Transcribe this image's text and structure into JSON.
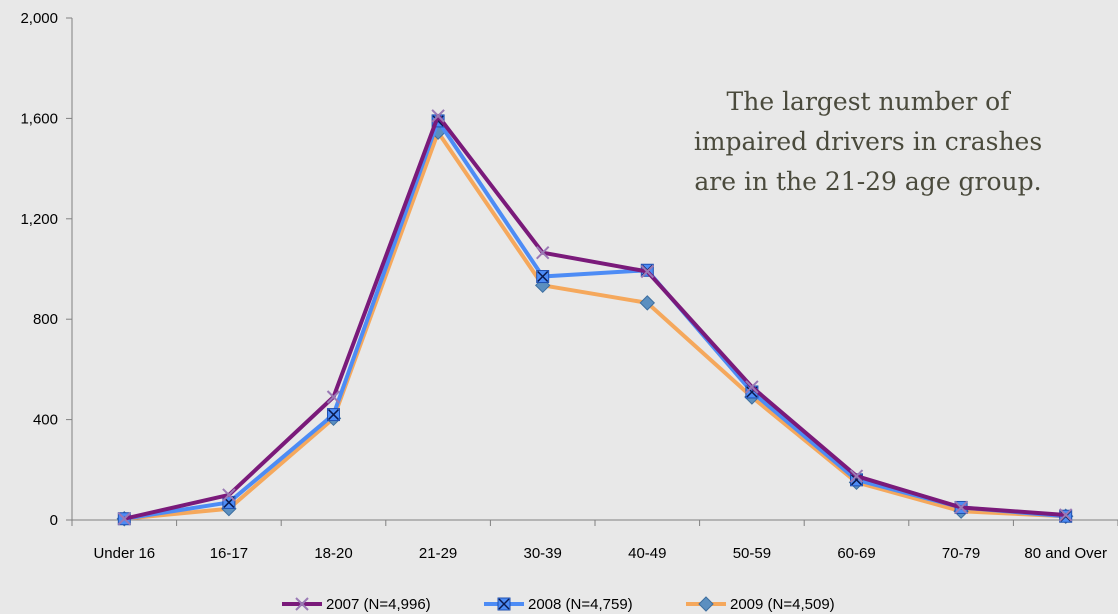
{
  "chart_data": {
    "type": "line",
    "categories": [
      "Under 16",
      "16-17",
      "18-20",
      "21-29",
      "30-39",
      "40-49",
      "50-59",
      "60-69",
      "70-79",
      "80 and Over"
    ],
    "ylim": [
      0,
      2000
    ],
    "yticks": [
      "0",
      "400",
      "800",
      "1,200",
      "1,600",
      "2,000"
    ],
    "ytick_values": [
      0,
      400,
      800,
      1200,
      1600,
      2000
    ],
    "grid": false,
    "legend_position": "bottom",
    "series": [
      {
        "name": "2007 (N=4,996)",
        "color": "#7a1a7a",
        "marker": "x",
        "values": [
          5,
          100,
          490,
          1610,
          1065,
          990,
          530,
          175,
          50,
          20
        ]
      },
      {
        "name": "2008 (N=4,759)",
        "color": "#4d8cf5",
        "marker": "square-x",
        "values": [
          5,
          70,
          420,
          1590,
          970,
          995,
          510,
          160,
          50,
          15
        ]
      },
      {
        "name": "2009 (N=4,509)",
        "color": "#f5a85c",
        "marker": "diamond",
        "values": [
          5,
          45,
          405,
          1545,
          935,
          865,
          490,
          150,
          35,
          15
        ]
      }
    ],
    "annotation": [
      "The largest number of",
      "impaired drivers in crashes",
      "are in the 21-29 age group."
    ]
  }
}
